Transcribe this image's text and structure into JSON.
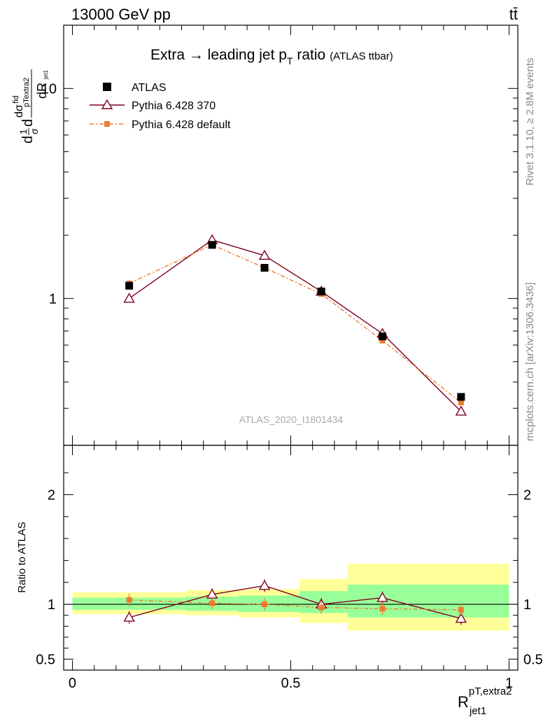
{
  "header": {
    "energy_label": "13000 GeV pp",
    "process_label": "tt̄"
  },
  "side_labels": {
    "rivet": "Rivet 3.1.10, ≥ 2.8M events",
    "mcplots": "mcplots.cern.ch [arXiv:1306.3436]"
  },
  "chart_data": [
    {
      "type": "line",
      "title": "Extra → leading jet p",
      "title_sub": "T",
      "title_tail": " ratio",
      "title_small": "(ATLAS ttbar)",
      "ylabel": "dσ / dR (normalized)",
      "yscale": "log",
      "ylim": [
        0.2,
        20
      ],
      "xlim": [
        -0.02,
        1.02
      ],
      "watermark": "ATLAS_2020_I1801434",
      "legend_position": "top-left",
      "y_ticks": [
        {
          "v": 1,
          "label": "1"
        },
        {
          "v": 10,
          "label": "10"
        }
      ],
      "series": [
        {
          "name": "ATLAS",
          "color": "#000000",
          "marker": "square",
          "x": [
            0.13,
            0.32,
            0.44,
            0.57,
            0.71,
            0.89
          ],
          "y": [
            1.15,
            1.8,
            1.4,
            1.08,
            0.66,
            0.34
          ]
        },
        {
          "name": "Pythia 6.428 370",
          "color": "#800020",
          "marker": "triangle",
          "x": [
            0.13,
            0.32,
            0.44,
            0.57,
            0.71,
            0.89
          ],
          "y": [
            1.0,
            1.9,
            1.6,
            1.08,
            0.68,
            0.29
          ]
        },
        {
          "name": "Pythia 6.428 default",
          "color": "#f07a30",
          "marker": "square-small",
          "x": [
            0.13,
            0.32,
            0.44,
            0.57,
            0.71,
            0.89
          ],
          "y": [
            1.18,
            1.8,
            1.4,
            1.05,
            0.63,
            0.32
          ]
        }
      ]
    },
    {
      "type": "line",
      "ylabel": "Ratio to ATLAS",
      "xlabel_main": "R",
      "xlabel_sup": "pT,extra2",
      "xlabel_sub": "jet1",
      "ylim": [
        0.4,
        2.45
      ],
      "xlim": [
        -0.02,
        1.02
      ],
      "y_ticks": [
        {
          "v": 0.5,
          "label": "0.5"
        },
        {
          "v": 1,
          "label": "1"
        },
        {
          "v": 2,
          "label": "2"
        }
      ],
      "x_ticks": [
        {
          "v": 0,
          "label": "0"
        },
        {
          "v": 0.5,
          "label": "0.5"
        },
        {
          "v": 1,
          "label": "1"
        }
      ],
      "bins": [
        0.0,
        0.26,
        0.38,
        0.63,
        0.78,
        1.0
      ],
      "bands": {
        "yellow": [
          [
            0.91,
            1.11
          ],
          [
            0.9,
            1.13
          ],
          [
            0.88,
            1.14
          ],
          [
            0.83,
            1.23
          ],
          [
            0.76,
            1.37
          ],
          [
            0.76,
            1.37
          ]
        ],
        "green": [
          [
            0.95,
            1.06
          ],
          [
            0.94,
            1.07
          ],
          [
            0.93,
            1.08
          ],
          [
            0.92,
            1.12
          ],
          [
            0.88,
            1.18
          ],
          [
            0.88,
            1.18
          ]
        ]
      },
      "series": [
        {
          "name": "Pythia 6.428 370",
          "color": "#800020",
          "marker": "triangle",
          "x": [
            0.13,
            0.32,
            0.44,
            0.57,
            0.71,
            0.89
          ],
          "y": [
            0.88,
            1.09,
            1.17,
            1.0,
            1.06,
            0.87
          ]
        },
        {
          "name": "Pythia 6.428 default",
          "color": "#f07a30",
          "marker": "square-small",
          "x": [
            0.13,
            0.32,
            0.44,
            0.57,
            0.71,
            0.89
          ],
          "y": [
            1.04,
            1.01,
            1.0,
            0.97,
            0.96,
            0.95
          ]
        }
      ]
    }
  ]
}
